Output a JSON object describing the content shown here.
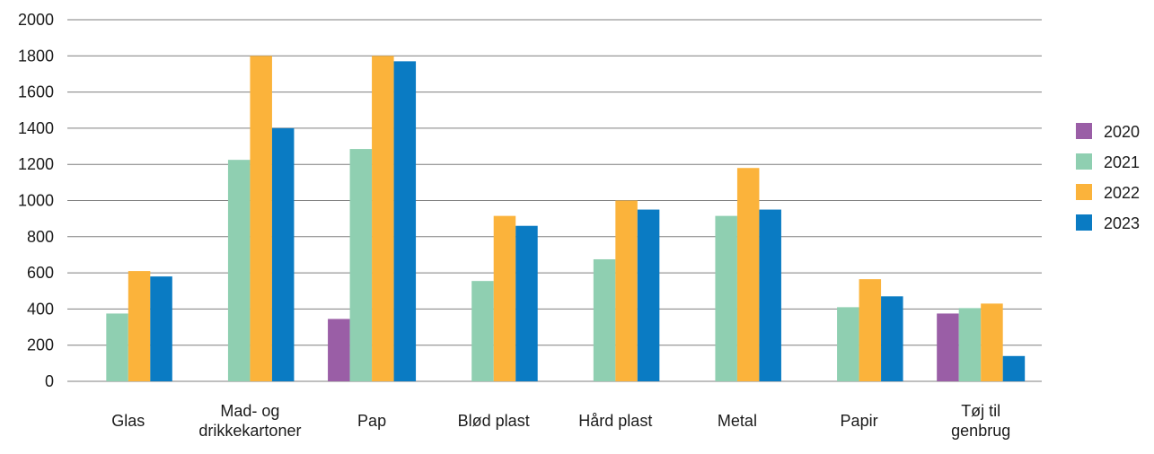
{
  "chart_data": {
    "type": "bar",
    "title": "",
    "xlabel": "",
    "ylabel": "",
    "ylim": [
      0,
      2000
    ],
    "yticks": [
      0,
      200,
      400,
      600,
      800,
      1000,
      1200,
      1400,
      1600,
      1800,
      2000
    ],
    "grid": true,
    "legend_position": "right",
    "categories": [
      [
        "Glas"
      ],
      [
        "Mad- og",
        "drikkekartoner"
      ],
      [
        "Pap"
      ],
      [
        "Blød plast"
      ],
      [
        "Hård plast"
      ],
      [
        "Metal"
      ],
      [
        "Papir"
      ],
      [
        "Tøj til",
        "genbrug"
      ]
    ],
    "series": [
      {
        "name": "2020",
        "color": "#9a5ea6",
        "values": [
          null,
          null,
          345,
          null,
          null,
          null,
          null,
          375
        ]
      },
      {
        "name": "2021",
        "color": "#8fcfb1",
        "values": [
          375,
          1225,
          1285,
          555,
          675,
          915,
          410,
          405
        ]
      },
      {
        "name": "2022",
        "color": "#fbb33b",
        "values": [
          610,
          1800,
          1800,
          915,
          1000,
          1180,
          565,
          430
        ]
      },
      {
        "name": "2023",
        "color": "#0a7bc3",
        "values": [
          580,
          1400,
          1770,
          860,
          950,
          950,
          470,
          140
        ]
      }
    ]
  }
}
